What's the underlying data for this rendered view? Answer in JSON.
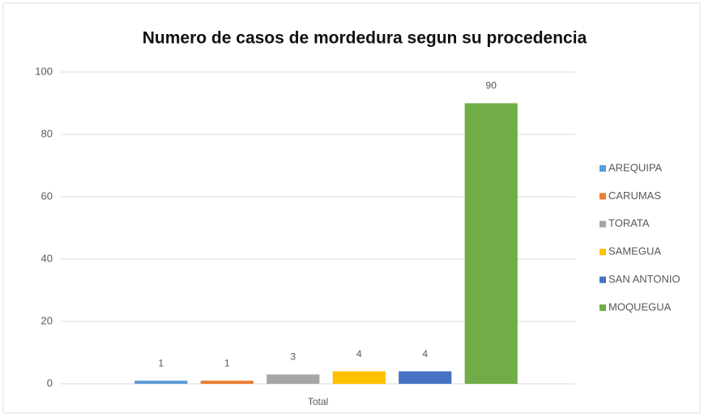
{
  "chart_data": {
    "type": "bar",
    "title": "Numero de casos de mordedura segun su procedencia",
    "categories": [
      "Total"
    ],
    "series": [
      {
        "name": "AREQUIPA",
        "color": "#5b9bd5",
        "values": [
          1
        ]
      },
      {
        "name": "CARUMAS",
        "color": "#ed7d31",
        "values": [
          1
        ]
      },
      {
        "name": "TORATA",
        "color": "#a5a5a5",
        "values": [
          3
        ]
      },
      {
        "name": "SAMEGUA",
        "color": "#ffc000",
        "values": [
          4
        ]
      },
      {
        "name": "SAN ANTONIO",
        "color": "#4472c4",
        "values": [
          4
        ]
      },
      {
        "name": "MOQUEGUA",
        "color": "#70ad47",
        "values": [
          90
        ]
      }
    ],
    "ylim": [
      0,
      100
    ],
    "yticks": [
      0,
      20,
      40,
      60,
      80,
      100
    ],
    "grid": true,
    "legend": "right"
  }
}
